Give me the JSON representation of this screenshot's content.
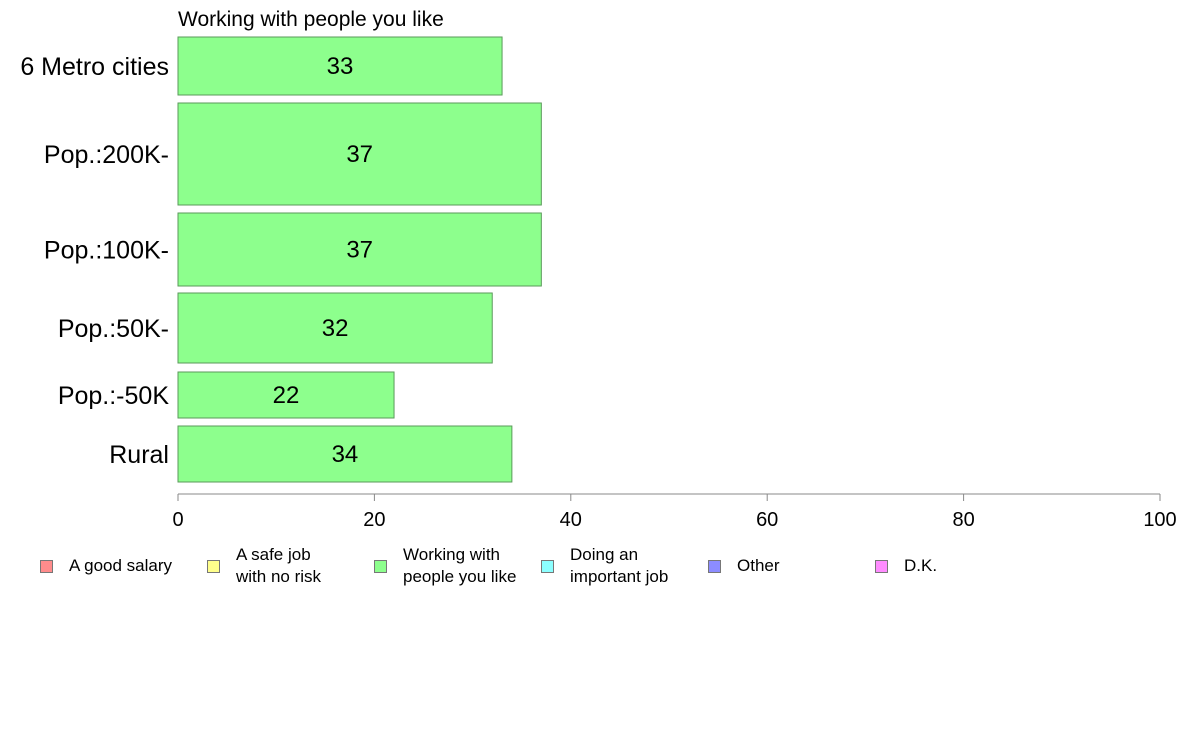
{
  "chart_data": {
    "type": "bar",
    "orientation": "horizontal",
    "title": "Working with people you like",
    "categories": [
      "6 Metro cities",
      "Pop.:200K-",
      "Pop.:100K-",
      "Pop.:50K-",
      "Pop.:-50K",
      "Rural"
    ],
    "values": [
      33,
      37,
      37,
      32,
      22,
      34
    ],
    "value_labels": [
      "33",
      "37",
      "37",
      "32",
      "22",
      "34"
    ],
    "xlim": [
      0,
      100
    ],
    "x_ticks": [
      0,
      20,
      40,
      60,
      80,
      100
    ],
    "x_tick_labels": [
      "0",
      "20",
      "40",
      "60",
      "80",
      "100"
    ],
    "bar_color": "#8dff8d",
    "bar_edge_color": "#5a9a5a",
    "axis_color": "#888888",
    "grid": false,
    "legend_position": "bottom",
    "legend": [
      {
        "label": "A good salary",
        "color": "#ff8c8c"
      },
      {
        "label": "A safe job\nwith no risk",
        "color": "#ffff8c"
      },
      {
        "label": "Working with\npeople you like",
        "color": "#8dff8d"
      },
      {
        "label": "Doing an\nimportant job",
        "color": "#8cffff"
      },
      {
        "label": "Other",
        "color": "#8c8cff"
      },
      {
        "label": "D.K.",
        "color": "#ff8cff"
      }
    ]
  }
}
